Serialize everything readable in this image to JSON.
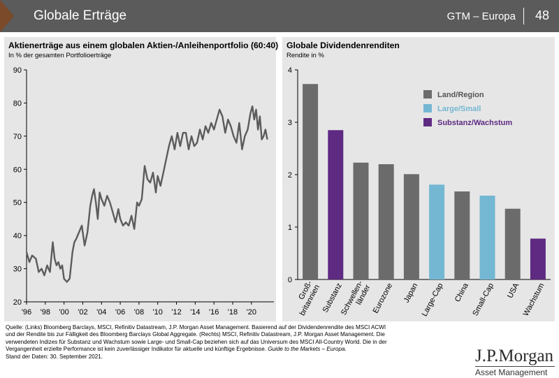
{
  "header": {
    "title": "Globale Erträge",
    "region": "GTM – Europa",
    "page_number": "48",
    "colors": {
      "bar": "#5b5b5b",
      "accent": "#7a4a2a"
    }
  },
  "chart_data": [
    {
      "type": "line",
      "title": "Aktienerträge aus einem globalen Aktien-/Anleihenportfolio (60:40)",
      "subtitle": "In % der gesamten Portfolioerträge",
      "xlabel": "",
      "ylabel": "",
      "xlim": [
        1996,
        2022.4
      ],
      "ylim": [
        20,
        90
      ],
      "yticks": [
        20,
        30,
        40,
        50,
        60,
        70,
        80,
        90
      ],
      "xticks": [
        1996,
        1998,
        2000,
        2002,
        2004,
        2006,
        2008,
        2010,
        2012,
        2014,
        2016,
        2018,
        2020
      ],
      "xtick_labels": [
        "'96",
        "'98",
        "'00",
        "'02",
        "'04",
        "'06",
        "'08",
        "'10",
        "'12",
        "'14",
        "'16",
        "'18",
        "'20"
      ],
      "grid": false,
      "line_color": "#5c5c5c",
      "series": [
        {
          "x": [
            1996.0,
            1996.3,
            1996.6,
            1997.0,
            1997.3,
            1997.6,
            1997.9,
            1998.2,
            1998.5,
            1998.8,
            1999.0,
            1999.2,
            1999.4,
            1999.6,
            1999.8,
            2000.0,
            2000.3,
            2000.6,
            2000.9,
            2001.1,
            2001.3,
            2001.6,
            2001.9,
            2002.2,
            2002.5,
            2002.8,
            2003.0,
            2003.2,
            2003.4,
            2003.6,
            2003.8,
            2004.0,
            2004.3,
            2004.6,
            2004.9,
            2005.2,
            2005.5,
            2005.8,
            2006.0,
            2006.3,
            2006.6,
            2006.9,
            2007.2,
            2007.5,
            2007.8,
            2008.0,
            2008.3,
            2008.6,
            2008.9,
            2009.2,
            2009.5,
            2009.8,
            2010.0,
            2010.3,
            2010.6,
            2010.9,
            2011.2,
            2011.5,
            2011.8,
            2012.1,
            2012.4,
            2012.7,
            2013.0,
            2013.3,
            2013.6,
            2013.9,
            2014.2,
            2014.5,
            2014.8,
            2015.1,
            2015.4,
            2015.7,
            2016.0,
            2016.3,
            2016.6,
            2016.9,
            2017.2,
            2017.5,
            2017.8,
            2018.1,
            2018.4,
            2018.7,
            2019.0,
            2019.3,
            2019.6,
            2019.9,
            2020.1,
            2020.3,
            2020.5,
            2020.7,
            2020.9,
            2021.1,
            2021.3,
            2021.5,
            2021.7
          ],
          "y": [
            35,
            32,
            34,
            33,
            29,
            30,
            28,
            31,
            29,
            38,
            33,
            31,
            32,
            30,
            31,
            27,
            26,
            27,
            35,
            38,
            39,
            41,
            43,
            37,
            41,
            49,
            52,
            54,
            50,
            45,
            53,
            51,
            49,
            52,
            50,
            47,
            44,
            48,
            45,
            43,
            44,
            43,
            46,
            42,
            50,
            49,
            51,
            61,
            57,
            56,
            59,
            53,
            58,
            55,
            59,
            63,
            67,
            70,
            66,
            71,
            67,
            71,
            71,
            66,
            70,
            67,
            68,
            72,
            69,
            73,
            71,
            74,
            72,
            75,
            78,
            76,
            71,
            75,
            73,
            70,
            68,
            74,
            66,
            70,
            72,
            77,
            79,
            75,
            78,
            72,
            76,
            69,
            70,
            72,
            69
          ]
        }
      ]
    },
    {
      "type": "bar",
      "title": "Globale Dividendenrenditen",
      "subtitle": "Rendite in %",
      "xlabel": "",
      "ylabel": "",
      "ylim": [
        0,
        4
      ],
      "yticks": [
        0,
        1,
        2,
        3,
        4
      ],
      "grid": false,
      "categories": [
        "Groß-britannien",
        "Substanz",
        "Schwellen-länder",
        "Eurozone",
        "Japan",
        "Large-Cap",
        "China",
        "Small-Cap",
        "USA",
        "Wachstum"
      ],
      "category_lines": [
        [
          "Groß-",
          "britannien"
        ],
        [
          "Substanz"
        ],
        [
          "Schwellen-",
          "länder"
        ],
        [
          "Eurozone"
        ],
        [
          "Japan"
        ],
        [
          "Large-Cap"
        ],
        [
          "China"
        ],
        [
          "Small-Cap"
        ],
        [
          "USA"
        ],
        [
          "Wachstum"
        ]
      ],
      "values": [
        3.73,
        2.85,
        2.23,
        2.2,
        2.01,
        1.81,
        1.68,
        1.6,
        1.35,
        0.78
      ],
      "groups": [
        "region",
        "style",
        "region",
        "region",
        "region",
        "size",
        "region",
        "size",
        "region",
        "style"
      ],
      "legend": {
        "placement": "top-right",
        "items": [
          {
            "key": "region",
            "label": "Land/Region",
            "color": "#6b6b6b"
          },
          {
            "key": "size",
            "label": "Large/Small",
            "color": "#74b7d3"
          },
          {
            "key": "style",
            "label": "Substanz/Wachstum",
            "color": "#5e2a82"
          }
        ]
      }
    }
  ],
  "footnote": {
    "lines": [
      "Quelle: (Links) Bloomberg Barclays, MSCI, Refinitiv Datastream, J.P. Morgan Asset Management. Basierend auf der Dividendenrendite des MSCI ACWI",
      "und der Rendite bis zur Fälligkeit des Bloomberg Barclays Global Aggregate. (Rechts) MSCI, Refinitiv Datastream, J.P. Morgan Asset Management. Die",
      "verwendeten Indizes für Substanz und Wachstum sowie Large- und Small-Cap beziehen sich auf das Universum des MSCI All-Country World. Die in der"
    ],
    "line4_regular": "Vergangenheit erzielte Performance ist kein zuverlässiger Indikator für aktuelle und künftige Ergebnisse. ",
    "line4_italic": "Guide to the Markets – Europa.",
    "date_line": "Stand der Daten: 30. September 2021."
  },
  "logo": {
    "name": "J.P.Morgan",
    "sub": "Asset Management"
  }
}
